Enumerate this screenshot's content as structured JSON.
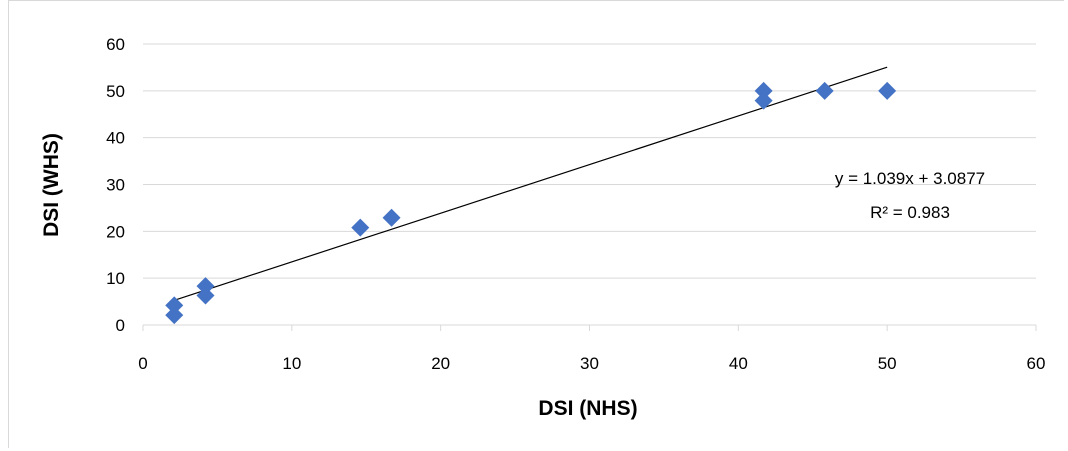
{
  "chart_data": {
    "type": "scatter",
    "title": "",
    "xlabel": "DSI (NHS)",
    "ylabel": "DSI (WHS)",
    "xlim": [
      0,
      60
    ],
    "ylim": [
      0,
      60
    ],
    "xticks": [
      0,
      10,
      20,
      30,
      40,
      50,
      60
    ],
    "yticks": [
      0,
      10,
      20,
      30,
      40,
      50,
      60
    ],
    "x_tick_labels": [
      "0",
      "10",
      "20",
      "30",
      "40",
      "50",
      "60"
    ],
    "y_tick_labels": [
      "0",
      "10",
      "20",
      "30",
      "40",
      "50",
      "60"
    ],
    "grid": "horizontal",
    "marker": "diamond",
    "marker_color": "#4472C4",
    "points": [
      {
        "x": 2.1,
        "y": 4.2
      },
      {
        "x": 2.1,
        "y": 2.1
      },
      {
        "x": 4.2,
        "y": 8.3
      },
      {
        "x": 4.2,
        "y": 6.3
      },
      {
        "x": 14.6,
        "y": 20.8
      },
      {
        "x": 16.7,
        "y": 22.9
      },
      {
        "x": 41.7,
        "y": 50.0
      },
      {
        "x": 41.7,
        "y": 47.9
      },
      {
        "x": 45.8,
        "y": 50.0
      },
      {
        "x": 50.0,
        "y": 50.0
      }
    ],
    "trendline": {
      "type": "linear",
      "slope": 1.039,
      "intercept": 3.0877,
      "x_range": [
        2.1,
        50.0
      ],
      "equation_label": "y = 1.039x + 3.0877",
      "r2_label": "R² = 0.983",
      "color": "#000000"
    }
  }
}
